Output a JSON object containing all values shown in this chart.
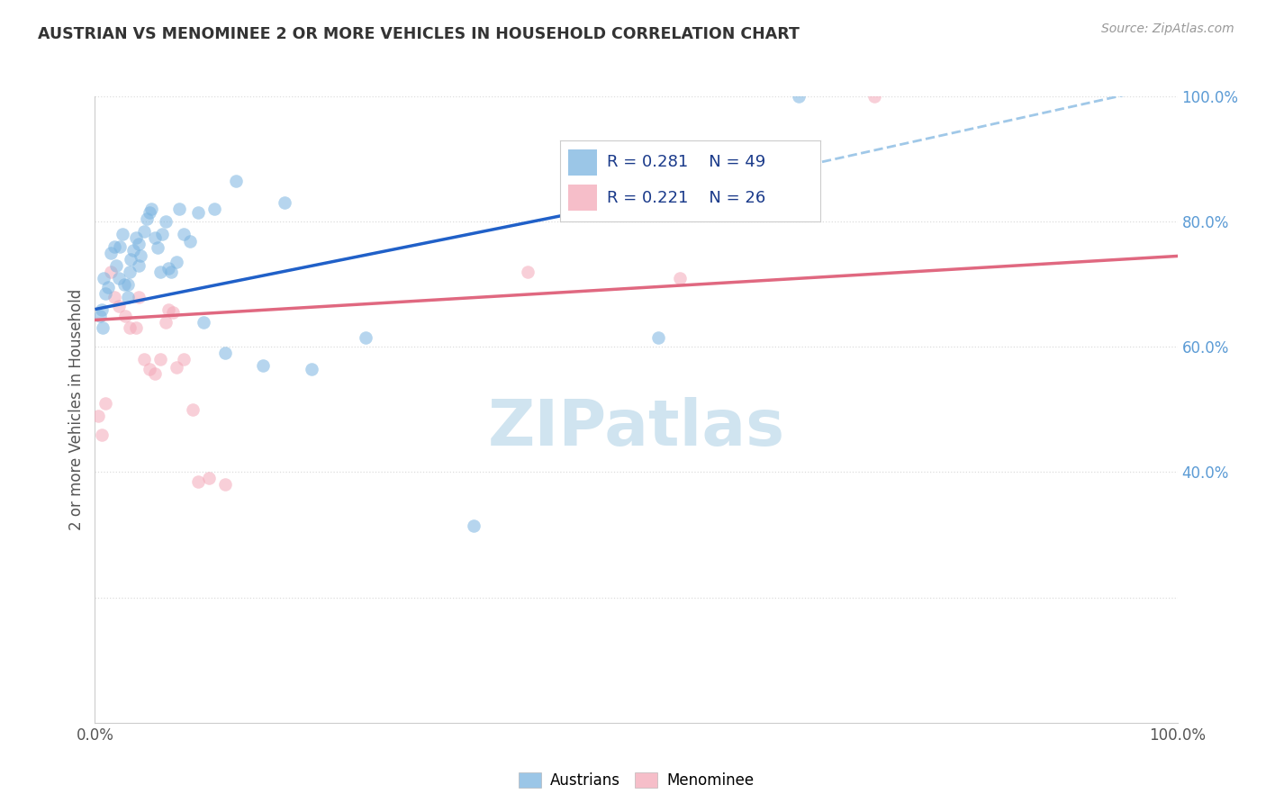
{
  "title": "AUSTRIAN VS MENOMINEE 2 OR MORE VEHICLES IN HOUSEHOLD CORRELATION CHART",
  "source": "Source: ZipAtlas.com",
  "ylabel": "2 or more Vehicles in Household",
  "legend_blue_label": "Austrians",
  "legend_pink_label": "Menominee",
  "blue_R": "0.281",
  "blue_N": "49",
  "pink_R": "0.221",
  "pink_N": "26",
  "blue_scatter_color": "#7ab4e0",
  "pink_scatter_color": "#f4a8b8",
  "blue_line_color": "#2060c8",
  "blue_dash_color": "#a0c8e8",
  "pink_line_color": "#e06880",
  "title_color": "#333333",
  "source_color": "#999999",
  "right_tick_color": "#5B9BD5",
  "legend_R_N_color": "#1a3a8a",
  "grid_color": "#dddddd",
  "bg_color": "#ffffff",
  "watermark_color": "#d0e4f0",
  "blue_x": [
    0.005,
    0.006,
    0.007,
    0.008,
    0.01,
    0.012,
    0.015,
    0.018,
    0.02,
    0.022,
    0.023,
    0.025,
    0.027,
    0.03,
    0.03,
    0.032,
    0.033,
    0.035,
    0.038,
    0.04,
    0.04,
    0.042,
    0.045,
    0.048,
    0.05,
    0.052,
    0.055,
    0.058,
    0.06,
    0.062,
    0.065,
    0.068,
    0.07,
    0.075,
    0.078,
    0.082,
    0.088,
    0.095,
    0.1,
    0.11,
    0.12,
    0.13,
    0.155,
    0.175,
    0.2,
    0.25,
    0.35,
    0.52,
    0.65
  ],
  "blue_y": [
    0.65,
    0.66,
    0.63,
    0.71,
    0.685,
    0.695,
    0.75,
    0.76,
    0.73,
    0.71,
    0.76,
    0.78,
    0.7,
    0.7,
    0.68,
    0.72,
    0.74,
    0.755,
    0.775,
    0.765,
    0.73,
    0.745,
    0.785,
    0.805,
    0.815,
    0.82,
    0.775,
    0.758,
    0.72,
    0.78,
    0.8,
    0.725,
    0.72,
    0.735,
    0.82,
    0.78,
    0.768,
    0.815,
    0.64,
    0.82,
    0.59,
    0.865,
    0.57,
    0.83,
    0.565,
    0.615,
    0.315,
    0.615,
    1.0
  ],
  "pink_x": [
    0.003,
    0.006,
    0.01,
    0.015,
    0.018,
    0.022,
    0.028,
    0.032,
    0.038,
    0.04,
    0.045,
    0.05,
    0.055,
    0.06,
    0.065,
    0.068,
    0.072,
    0.075,
    0.082,
    0.09,
    0.095,
    0.105,
    0.12,
    0.4,
    0.54,
    0.72
  ],
  "pink_y": [
    0.49,
    0.46,
    0.51,
    0.72,
    0.68,
    0.665,
    0.65,
    0.63,
    0.63,
    0.68,
    0.58,
    0.565,
    0.558,
    0.58,
    0.64,
    0.66,
    0.655,
    0.568,
    0.58,
    0.5,
    0.385,
    0.39,
    0.38,
    0.72,
    0.71,
    1.0
  ],
  "blue_line": [
    0.0,
    0.66,
    0.62,
    0.875
  ],
  "blue_dash": [
    0.6,
    0.868,
    1.05,
    1.04
  ],
  "pink_line": [
    0.0,
    0.643,
    1.0,
    0.745
  ],
  "xlim": [
    0.0,
    1.0
  ],
  "ylim": [
    0.0,
    1.0
  ],
  "marker_size": 110,
  "marker_alpha": 0.55
}
